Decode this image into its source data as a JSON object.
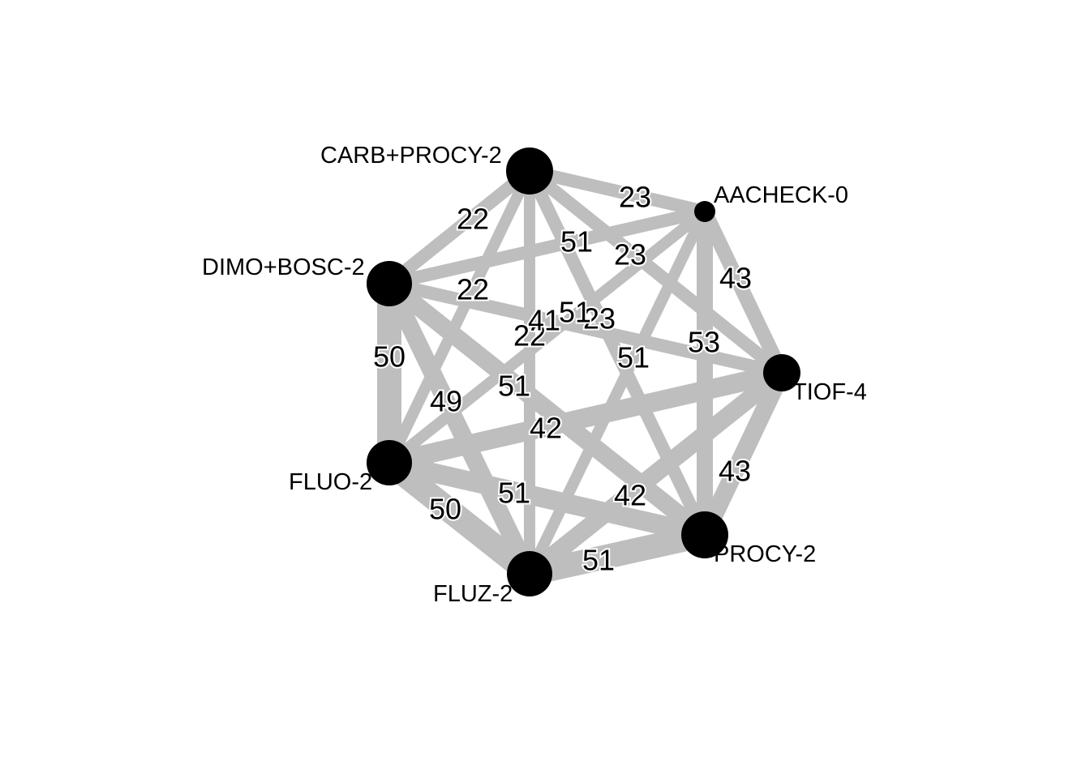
{
  "network": {
    "nodes": [
      {
        "id": "carb_procy",
        "label": "CARB+PROCY-2"
      },
      {
        "id": "aacheck",
        "label": "AACHECK-0"
      },
      {
        "id": "dimo_bosc",
        "label": "DIMO+BOSC-2"
      },
      {
        "id": "tiof",
        "label": "TIOF-4"
      },
      {
        "id": "fluo",
        "label": "FLUO-2"
      },
      {
        "id": "procy",
        "label": "PROCY-2"
      },
      {
        "id": "fluz",
        "label": "FLUZ-2"
      }
    ],
    "edges": [
      {
        "source": "carb_procy",
        "target": "aacheck",
        "weight": "23"
      },
      {
        "source": "carb_procy",
        "target": "dimo_bosc",
        "weight": "22"
      },
      {
        "source": "carb_procy",
        "target": "tiof",
        "weight": "51"
      },
      {
        "source": "carb_procy",
        "target": "fluo",
        "weight": "22"
      },
      {
        "source": "carb_procy",
        "target": "procy",
        "weight": "51"
      },
      {
        "source": "carb_procy",
        "target": "fluz",
        "weight": "51"
      },
      {
        "source": "aacheck",
        "target": "dimo_bosc",
        "weight": "23"
      },
      {
        "source": "aacheck",
        "target": "tiof",
        "weight": "43"
      },
      {
        "source": "aacheck",
        "target": "fluo",
        "weight": "23"
      },
      {
        "source": "aacheck",
        "target": "procy",
        "weight": "53"
      },
      {
        "source": "aacheck",
        "target": "fluz",
        "weight": "41"
      },
      {
        "source": "dimo_bosc",
        "target": "tiof",
        "weight": "22"
      },
      {
        "source": "dimo_bosc",
        "target": "fluo",
        "weight": "50"
      },
      {
        "source": "dimo_bosc",
        "target": "procy",
        "weight": "49"
      },
      {
        "source": "dimo_bosc",
        "target": "fluz",
        "weight": "51"
      },
      {
        "source": "tiof",
        "target": "fluo",
        "weight": "51"
      },
      {
        "source": "tiof",
        "target": "procy",
        "weight": "43"
      },
      {
        "source": "tiof",
        "target": "fluz",
        "weight": "42"
      },
      {
        "source": "fluo",
        "target": "procy",
        "weight": "42"
      },
      {
        "source": "fluo",
        "target": "fluz",
        "weight": "50"
      },
      {
        "source": "procy",
        "target": "fluz",
        "weight": "51"
      }
    ]
  }
}
